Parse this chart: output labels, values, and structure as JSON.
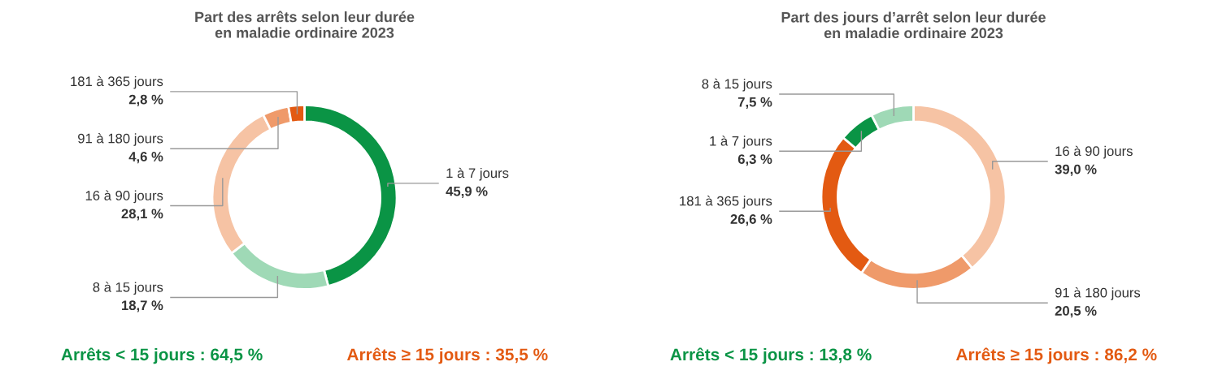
{
  "chart_data": [
    {
      "type": "donut",
      "title": "Part des arrêts selon leur durée\nen maladie ordinaire 2023",
      "categories": [
        "1 à 7 jours",
        "8 à 15 jours",
        "16 à 90 jours",
        "91 à 180 jours",
        "181 à 365 jours"
      ],
      "values": [
        45.9,
        18.7,
        28.1,
        4.6,
        2.8
      ],
      "value_labels": [
        "45,9 %",
        "18,7 %",
        "28,1 %",
        "4,6 %",
        "2,8 %"
      ],
      "colors": [
        "#0a9445",
        "#9fd9b6",
        "#f6c3a4",
        "#ef9a6a",
        "#e35a12"
      ],
      "annotations": [
        "Arrêts < 15 jours : 64,5 %",
        "Arrêts ≥ 15 jours : 35,5 %"
      ]
    },
    {
      "type": "donut",
      "title": "Part des jours d’arrêt selon leur durée\nen maladie ordinaire 2023",
      "categories": [
        "16 à 90 jours",
        "91 à 180 jours",
        "181 à 365 jours",
        "1 à 7 jours",
        "8 à 15 jours"
      ],
      "values": [
        39.0,
        20.5,
        26.6,
        6.3,
        7.5
      ],
      "value_labels": [
        "39,0 %",
        "20,5 %",
        "26,6 %",
        "6,3 %",
        "7,5 %"
      ],
      "colors": [
        "#f6c3a4",
        "#ef9a6a",
        "#e35a12",
        "#0a9445",
        "#9fd9b6"
      ],
      "annotations": [
        "Arrêts < 15 jours : 13,8 %",
        "Arrêts ≥ 15 jours : 86,2 %"
      ]
    }
  ]
}
